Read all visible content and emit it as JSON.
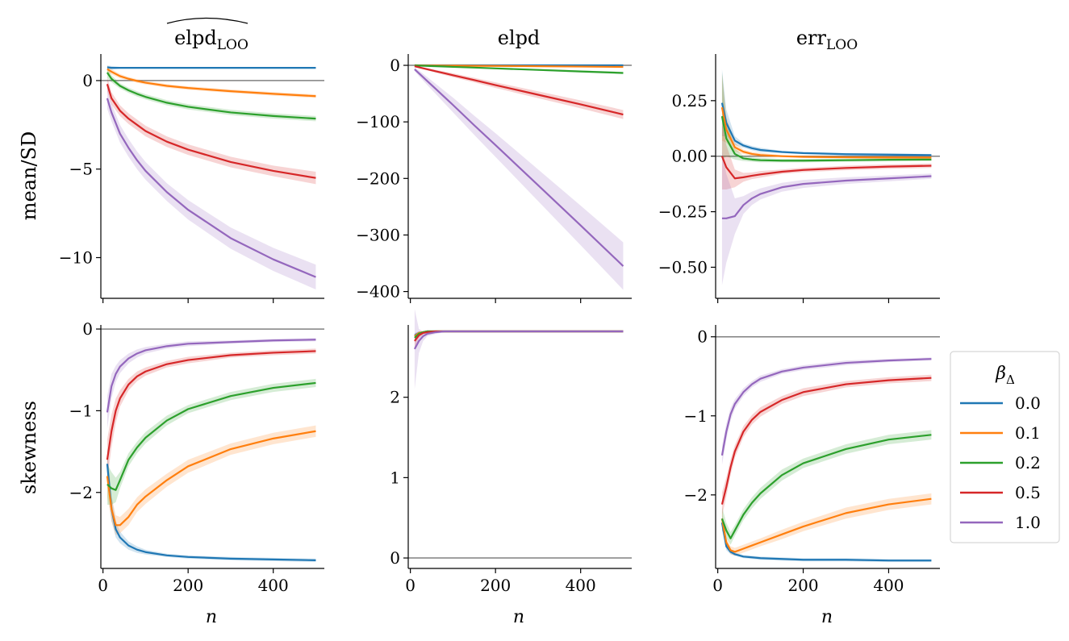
{
  "figure": {
    "col_titles": [
      "elpd",
      "elpd",
      "err"
    ],
    "col_title_subscripts": [
      "LOO",
      "",
      "LOO"
    ],
    "row_labels": [
      "mean/SD",
      "skewness"
    ],
    "xlabel": "n",
    "xticks": [
      0,
      200,
      400
    ]
  },
  "legend": {
    "title": "β",
    "title_subscript": "Δ",
    "entries": [
      {
        "label": "0.0",
        "color": "#1f77b4"
      },
      {
        "label": "0.1",
        "color": "#ff7f0e"
      },
      {
        "label": "0.2",
        "color": "#2ca02c"
      },
      {
        "label": "0.5",
        "color": "#d62728"
      },
      {
        "label": "1.0",
        "color": "#9467bd"
      }
    ]
  },
  "chart_data": [
    {
      "type": "line",
      "row": 0,
      "col": 0,
      "xlim": [
        -5,
        520
      ],
      "ylim": [
        -12.3,
        1.5
      ],
      "refline": 0,
      "yticks": [
        0,
        -5,
        -10
      ],
      "x": [
        10,
        20,
        40,
        60,
        80,
        100,
        150,
        200,
        300,
        400,
        500
      ],
      "series": [
        {
          "name": "0.0",
          "values": [
            0.75,
            0.72,
            0.72,
            0.72,
            0.72,
            0.72,
            0.72,
            0.72,
            0.72,
            0.72,
            0.72
          ],
          "band": [
            0.1,
            0.1,
            0.05,
            0.05,
            0.05,
            0.05,
            0.05,
            0.05,
            0.05,
            0.05,
            0.05
          ]
        },
        {
          "name": "0.1",
          "values": [
            0.65,
            0.5,
            0.25,
            0.1,
            -0.02,
            -0.12,
            -0.3,
            -0.42,
            -0.6,
            -0.75,
            -0.88
          ],
          "band": [
            0.2,
            0.15,
            0.12,
            0.1,
            0.1,
            0.1,
            0.1,
            0.1,
            0.1,
            0.1,
            0.1
          ]
        },
        {
          "name": "0.2",
          "values": [
            0.45,
            0.1,
            -0.3,
            -0.55,
            -0.75,
            -0.92,
            -1.25,
            -1.48,
            -1.8,
            -2.0,
            -2.15
          ],
          "band": [
            0.3,
            0.2,
            0.15,
            0.15,
            0.15,
            0.15,
            0.15,
            0.15,
            0.15,
            0.15,
            0.15
          ]
        },
        {
          "name": "0.5",
          "values": [
            -0.2,
            -1.0,
            -1.7,
            -2.15,
            -2.5,
            -2.85,
            -3.45,
            -3.9,
            -4.6,
            -5.1,
            -5.5
          ],
          "band": [
            0.4,
            0.35,
            0.3,
            0.3,
            0.3,
            0.3,
            0.3,
            0.3,
            0.3,
            0.3,
            0.35
          ]
        },
        {
          "name": "1.0",
          "values": [
            -1.0,
            -1.8,
            -3.0,
            -3.8,
            -4.5,
            -5.1,
            -6.3,
            -7.3,
            -8.9,
            -10.1,
            -11.1
          ],
          "band": [
            0.6,
            0.5,
            0.5,
            0.5,
            0.5,
            0.5,
            0.5,
            0.55,
            0.6,
            0.65,
            0.7
          ]
        }
      ]
    },
    {
      "type": "line",
      "row": 0,
      "col": 1,
      "xlim": [
        -5,
        520
      ],
      "ylim": [
        -412,
        20
      ],
      "refline": 0,
      "yticks": [
        0,
        -100,
        -200,
        -300,
        -400
      ],
      "x": [
        10,
        20,
        40,
        60,
        80,
        100,
        150,
        200,
        300,
        400,
        500
      ],
      "series": [
        {
          "name": "0.0",
          "values": [
            0,
            0,
            0,
            0,
            0,
            0,
            0,
            0,
            0,
            0,
            0
          ],
          "band": [
            0.5,
            0.5,
            0.5,
            0.5,
            0.5,
            0.5,
            0.5,
            0.5,
            0.5,
            0.5,
            0.5
          ]
        },
        {
          "name": "0.1",
          "values": [
            0,
            -0.1,
            -0.2,
            -0.3,
            -0.4,
            -0.5,
            -0.8,
            -1.0,
            -1.6,
            -2.2,
            -2.8
          ],
          "band": [
            0.3,
            0.3,
            0.3,
            0.3,
            0.3,
            0.3,
            0.4,
            0.5,
            0.6,
            0.7,
            0.8
          ]
        },
        {
          "name": "0.2",
          "values": [
            -0.3,
            -0.5,
            -1.0,
            -1.6,
            -2.1,
            -2.7,
            -4.0,
            -5.4,
            -8.1,
            -10.8,
            -13.5
          ],
          "band": [
            0.5,
            0.5,
            0.6,
            0.7,
            0.8,
            0.9,
            1.0,
            1.2,
            1.5,
            1.8,
            2.0
          ]
        },
        {
          "name": "0.5",
          "values": [
            -1.7,
            -3.5,
            -7.0,
            -10.5,
            -14,
            -17.5,
            -26,
            -35,
            -52,
            -69,
            -87
          ],
          "band": [
            1,
            1.5,
            2,
            2.5,
            3,
            3.5,
            4,
            5,
            6,
            7,
            8
          ]
        },
        {
          "name": "1.0",
          "values": [
            -7,
            -14,
            -28,
            -42,
            -56,
            -70,
            -106,
            -141,
            -212,
            -283,
            -355
          ],
          "band": [
            3,
            5,
            7,
            9,
            11,
            13,
            17,
            21,
            28,
            35,
            42
          ]
        }
      ]
    },
    {
      "type": "line",
      "row": 0,
      "col": 2,
      "xlim": [
        -5,
        520
      ],
      "ylim": [
        -0.64,
        0.46
      ],
      "refline": 0,
      "yticks": [
        0.25,
        0.0,
        -0.25,
        -0.5
      ],
      "ytick_labels": [
        "0.25",
        "0.00",
        "−0.25",
        "−0.50"
      ],
      "x": [
        10,
        20,
        40,
        60,
        80,
        100,
        150,
        200,
        300,
        400,
        500
      ],
      "series": [
        {
          "name": "0.0",
          "values": [
            0.24,
            0.15,
            0.07,
            0.048,
            0.036,
            0.028,
            0.019,
            0.014,
            0.009,
            0.007,
            0.005
          ],
          "band": [
            0.15,
            0.06,
            0.02,
            0.01,
            0.01,
            0.01,
            0.005,
            0.005,
            0.005,
            0.005,
            0.005
          ]
        },
        {
          "name": "0.1",
          "values": [
            0.22,
            0.12,
            0.04,
            0.02,
            0.01,
            0.005,
            0.0,
            -0.003,
            -0.005,
            -0.006,
            -0.006
          ],
          "band": [
            0.15,
            0.06,
            0.02,
            0.01,
            0.01,
            0.01,
            0.005,
            0.005,
            0.005,
            0.005,
            0.005
          ]
        },
        {
          "name": "0.2",
          "values": [
            0.18,
            0.08,
            0.01,
            -0.01,
            -0.015,
            -0.018,
            -0.02,
            -0.02,
            -0.018,
            -0.016,
            -0.015
          ],
          "band": [
            0.2,
            0.08,
            0.025,
            0.012,
            0.01,
            0.01,
            0.008,
            0.008,
            0.007,
            0.007,
            0.007
          ]
        },
        {
          "name": "0.5",
          "values": [
            0.0,
            -0.05,
            -0.1,
            -0.095,
            -0.088,
            -0.082,
            -0.07,
            -0.062,
            -0.053,
            -0.047,
            -0.043
          ],
          "band": [
            0.15,
            0.1,
            0.04,
            0.02,
            0.015,
            0.015,
            0.01,
            0.01,
            0.01,
            0.01,
            0.01
          ]
        },
        {
          "name": "1.0",
          "values": [
            -0.28,
            -0.28,
            -0.27,
            -0.22,
            -0.19,
            -0.17,
            -0.14,
            -0.125,
            -0.11,
            -0.1,
            -0.09
          ],
          "band": [
            0.3,
            0.2,
            0.08,
            0.04,
            0.03,
            0.025,
            0.02,
            0.018,
            0.015,
            0.013,
            0.012
          ]
        }
      ]
    },
    {
      "type": "line",
      "row": 1,
      "col": 0,
      "xlim": [
        -5,
        520
      ],
      "ylim": [
        -2.93,
        0.05
      ],
      "refline": 0,
      "yticks": [
        0,
        -1,
        -2
      ],
      "x": [
        10,
        20,
        30,
        40,
        60,
        80,
        100,
        150,
        200,
        300,
        400,
        500
      ],
      "series": [
        {
          "name": "0.0",
          "values": [
            -1.65,
            -2.2,
            -2.45,
            -2.55,
            -2.65,
            -2.7,
            -2.73,
            -2.77,
            -2.79,
            -2.81,
            -2.82,
            -2.83
          ],
          "band": [
            0.2,
            0.15,
            0.1,
            0.07,
            0.05,
            0.04,
            0.03,
            0.02,
            0.02,
            0.02,
            0.02,
            0.02
          ]
        },
        {
          "name": "0.1",
          "values": [
            -1.8,
            -2.2,
            -2.4,
            -2.4,
            -2.3,
            -2.15,
            -2.05,
            -1.85,
            -1.68,
            -1.47,
            -1.34,
            -1.25
          ],
          "band": [
            0.25,
            0.15,
            0.12,
            0.1,
            0.1,
            0.09,
            0.09,
            0.08,
            0.08,
            0.07,
            0.07,
            0.07
          ]
        },
        {
          "name": "0.2",
          "values": [
            -1.9,
            -1.95,
            -1.97,
            -1.85,
            -1.6,
            -1.45,
            -1.33,
            -1.12,
            -0.98,
            -0.82,
            -0.72,
            -0.66
          ],
          "band": [
            0.25,
            0.2,
            0.15,
            0.1,
            0.08,
            0.07,
            0.07,
            0.06,
            0.05,
            0.05,
            0.05,
            0.05
          ]
        },
        {
          "name": "0.5",
          "values": [
            -1.6,
            -1.25,
            -1.0,
            -0.85,
            -0.68,
            -0.58,
            -0.52,
            -0.43,
            -0.38,
            -0.32,
            -0.29,
            -0.27
          ],
          "band": [
            0.25,
            0.2,
            0.15,
            0.1,
            0.07,
            0.06,
            0.05,
            0.04,
            0.04,
            0.03,
            0.03,
            0.03
          ]
        },
        {
          "name": "1.0",
          "values": [
            -1.02,
            -0.7,
            -0.55,
            -0.46,
            -0.36,
            -0.3,
            -0.26,
            -0.21,
            -0.18,
            -0.16,
            -0.14,
            -0.13
          ],
          "band": [
            0.2,
            0.15,
            0.1,
            0.08,
            0.06,
            0.05,
            0.04,
            0.03,
            0.03,
            0.02,
            0.02,
            0.02
          ]
        }
      ]
    },
    {
      "type": "line",
      "row": 1,
      "col": 1,
      "xlim": [
        -5,
        520
      ],
      "ylim": [
        -0.13,
        2.9
      ],
      "refline": 0,
      "yticks": [
        0,
        1,
        2
      ],
      "x": [
        10,
        20,
        30,
        40,
        60,
        80,
        100,
        150,
        200,
        300,
        400,
        500
      ],
      "series": [
        {
          "name": "0.0",
          "values": [
            2.77,
            2.8,
            2.81,
            2.82,
            2.82,
            2.82,
            2.82,
            2.82,
            2.82,
            2.82,
            2.82,
            2.82
          ],
          "band": [
            0.03,
            0.02,
            0.01,
            0.01,
            0.01,
            0.01,
            0.01,
            0.01,
            0.01,
            0.01,
            0.01,
            0.01
          ]
        },
        {
          "name": "0.1",
          "values": [
            2.76,
            2.8,
            2.81,
            2.82,
            2.82,
            2.82,
            2.82,
            2.82,
            2.82,
            2.82,
            2.82,
            2.82
          ],
          "band": [
            0.03,
            0.02,
            0.01,
            0.01,
            0.01,
            0.01,
            0.01,
            0.01,
            0.01,
            0.01,
            0.01,
            0.01
          ]
        },
        {
          "name": "0.2",
          "values": [
            2.74,
            2.79,
            2.81,
            2.82,
            2.82,
            2.82,
            2.82,
            2.82,
            2.82,
            2.82,
            2.82,
            2.82
          ],
          "band": [
            0.04,
            0.02,
            0.01,
            0.01,
            0.01,
            0.01,
            0.01,
            0.01,
            0.01,
            0.01,
            0.01,
            0.01
          ]
        },
        {
          "name": "0.5",
          "values": [
            2.7,
            2.77,
            2.8,
            2.81,
            2.82,
            2.82,
            2.82,
            2.82,
            2.82,
            2.82,
            2.82,
            2.82
          ],
          "band": [
            0.08,
            0.04,
            0.02,
            0.01,
            0.01,
            0.01,
            0.01,
            0.01,
            0.01,
            0.01,
            0.01,
            0.01
          ]
        },
        {
          "name": "1.0",
          "values": [
            2.6,
            2.7,
            2.76,
            2.79,
            2.81,
            2.82,
            2.82,
            2.82,
            2.82,
            2.82,
            2.82,
            2.82
          ],
          "band": [
            0.5,
            0.15,
            0.06,
            0.03,
            0.02,
            0.01,
            0.01,
            0.01,
            0.01,
            0.01,
            0.01,
            0.01
          ]
        }
      ]
    },
    {
      "type": "line",
      "row": 1,
      "col": 2,
      "xlim": [
        -5,
        520
      ],
      "ylim": [
        -2.93,
        0.15
      ],
      "refline": 0,
      "yticks": [
        0,
        -1,
        -2
      ],
      "x": [
        10,
        20,
        30,
        40,
        60,
        80,
        100,
        150,
        200,
        300,
        400,
        500
      ],
      "series": [
        {
          "name": "0.0",
          "values": [
            -2.35,
            -2.65,
            -2.72,
            -2.75,
            -2.78,
            -2.79,
            -2.8,
            -2.81,
            -2.82,
            -2.82,
            -2.83,
            -2.83
          ],
          "band": [
            0.1,
            0.05,
            0.03,
            0.02,
            0.02,
            0.02,
            0.02,
            0.02,
            0.02,
            0.02,
            0.02,
            0.02
          ]
        },
        {
          "name": "0.1",
          "values": [
            -2.3,
            -2.6,
            -2.7,
            -2.72,
            -2.68,
            -2.64,
            -2.6,
            -2.5,
            -2.4,
            -2.23,
            -2.12,
            -2.05
          ],
          "band": [
            0.1,
            0.05,
            0.05,
            0.05,
            0.05,
            0.05,
            0.05,
            0.06,
            0.06,
            0.07,
            0.07,
            0.07
          ]
        },
        {
          "name": "0.2",
          "values": [
            -2.3,
            -2.45,
            -2.55,
            -2.45,
            -2.25,
            -2.1,
            -1.98,
            -1.75,
            -1.6,
            -1.42,
            -1.3,
            -1.24
          ],
          "band": [
            0.15,
            0.1,
            0.08,
            0.07,
            0.07,
            0.07,
            0.07,
            0.07,
            0.06,
            0.06,
            0.06,
            0.06
          ]
        },
        {
          "name": "0.5",
          "values": [
            -2.12,
            -1.9,
            -1.65,
            -1.45,
            -1.2,
            -1.05,
            -0.95,
            -0.8,
            -0.7,
            -0.6,
            -0.55,
            -0.52
          ],
          "band": [
            0.15,
            0.12,
            0.1,
            0.08,
            0.07,
            0.06,
            0.06,
            0.05,
            0.05,
            0.04,
            0.04,
            0.04
          ]
        },
        {
          "name": "1.0",
          "values": [
            -1.5,
            -1.2,
            -0.98,
            -0.85,
            -0.7,
            -0.6,
            -0.53,
            -0.44,
            -0.39,
            -0.33,
            -0.3,
            -0.28
          ],
          "band": [
            0.12,
            0.1,
            0.08,
            0.06,
            0.05,
            0.04,
            0.04,
            0.03,
            0.03,
            0.03,
            0.02,
            0.02
          ]
        }
      ]
    }
  ]
}
